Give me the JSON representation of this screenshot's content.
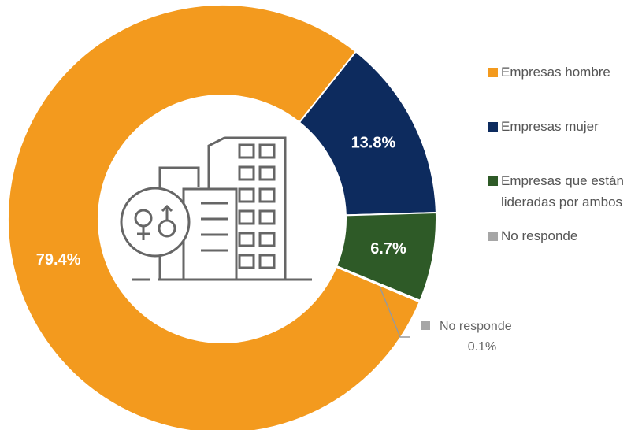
{
  "chart_data": {
    "type": "donut",
    "categories": [
      "Empresas hombre",
      "Empresas mujer",
      "Empresas que están lideradas por ambos",
      "No responde"
    ],
    "values": [
      79.4,
      13.8,
      6.7,
      0.1
    ],
    "value_labels": [
      "79.4%",
      "13.8%",
      "6.7%",
      "0.1%"
    ],
    "colors": [
      "#F39A1E",
      "#0D2B5E",
      "#2E5A27",
      "#A6A6A6"
    ]
  }
}
